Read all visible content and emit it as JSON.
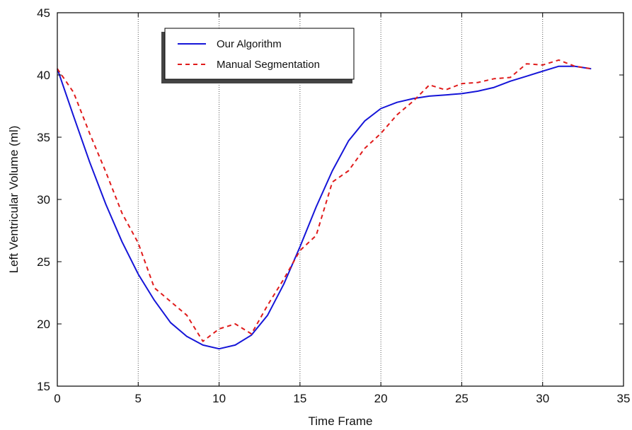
{
  "chart_data": {
    "type": "line",
    "title": "",
    "xlabel": "Time Frame",
    "ylabel": "Left Ventricular Volume (ml)",
    "xlim": [
      0,
      35
    ],
    "ylim": [
      15,
      45
    ],
    "xticks": [
      0,
      5,
      10,
      15,
      20,
      25,
      30,
      35
    ],
    "yticks": [
      15,
      20,
      25,
      30,
      35,
      40,
      45
    ],
    "x_tick_labels": [
      "0",
      "5",
      "10",
      "15",
      "20",
      "25",
      "30",
      "35"
    ],
    "y_tick_labels": [
      "15",
      "20",
      "25",
      "30",
      "35",
      "40",
      "45"
    ],
    "grid": "vertical dotted at x ticks",
    "legend_position": "top-left",
    "series": [
      {
        "name": "Our Algorithm",
        "color": "#1515d8",
        "style": "solid",
        "x": [
          0,
          1,
          2,
          3,
          4,
          5,
          6,
          7,
          8,
          9,
          10,
          11,
          12,
          13,
          14,
          15,
          16,
          17,
          18,
          19,
          20,
          21,
          22,
          23,
          24,
          25,
          26,
          27,
          28,
          29,
          30,
          31,
          32,
          33
        ],
        "values": [
          40.5,
          36.7,
          33.0,
          29.6,
          26.6,
          24.0,
          21.9,
          20.1,
          19.0,
          18.3,
          18.0,
          18.3,
          19.1,
          20.7,
          23.2,
          26.2,
          29.4,
          32.3,
          34.7,
          36.3,
          37.3,
          37.8,
          38.1,
          38.3,
          38.4,
          38.5,
          38.7,
          39.0,
          39.5,
          39.9,
          40.3,
          40.7,
          40.7,
          40.5
        ]
      },
      {
        "name": "Manual Segmentation",
        "color": "#e01b1b",
        "style": "dashed",
        "x": [
          0,
          1,
          2,
          3,
          4,
          5,
          6,
          7,
          8,
          9,
          10,
          11,
          12,
          13,
          14,
          15,
          16,
          17,
          18,
          19,
          20,
          21,
          22,
          23,
          24,
          25,
          26,
          27,
          28,
          29,
          30,
          31,
          32,
          33
        ],
        "values": [
          40.5,
          38.6,
          35.3,
          32.2,
          28.9,
          26.5,
          22.9,
          21.8,
          20.7,
          18.6,
          19.6,
          20.0,
          19.2,
          21.5,
          23.6,
          25.9,
          27.1,
          31.4,
          32.3,
          34.1,
          35.3,
          36.8,
          37.9,
          39.2,
          38.8,
          39.3,
          39.4,
          39.7,
          39.8,
          40.9,
          40.8,
          41.2,
          40.7,
          40.5
        ]
      }
    ]
  }
}
